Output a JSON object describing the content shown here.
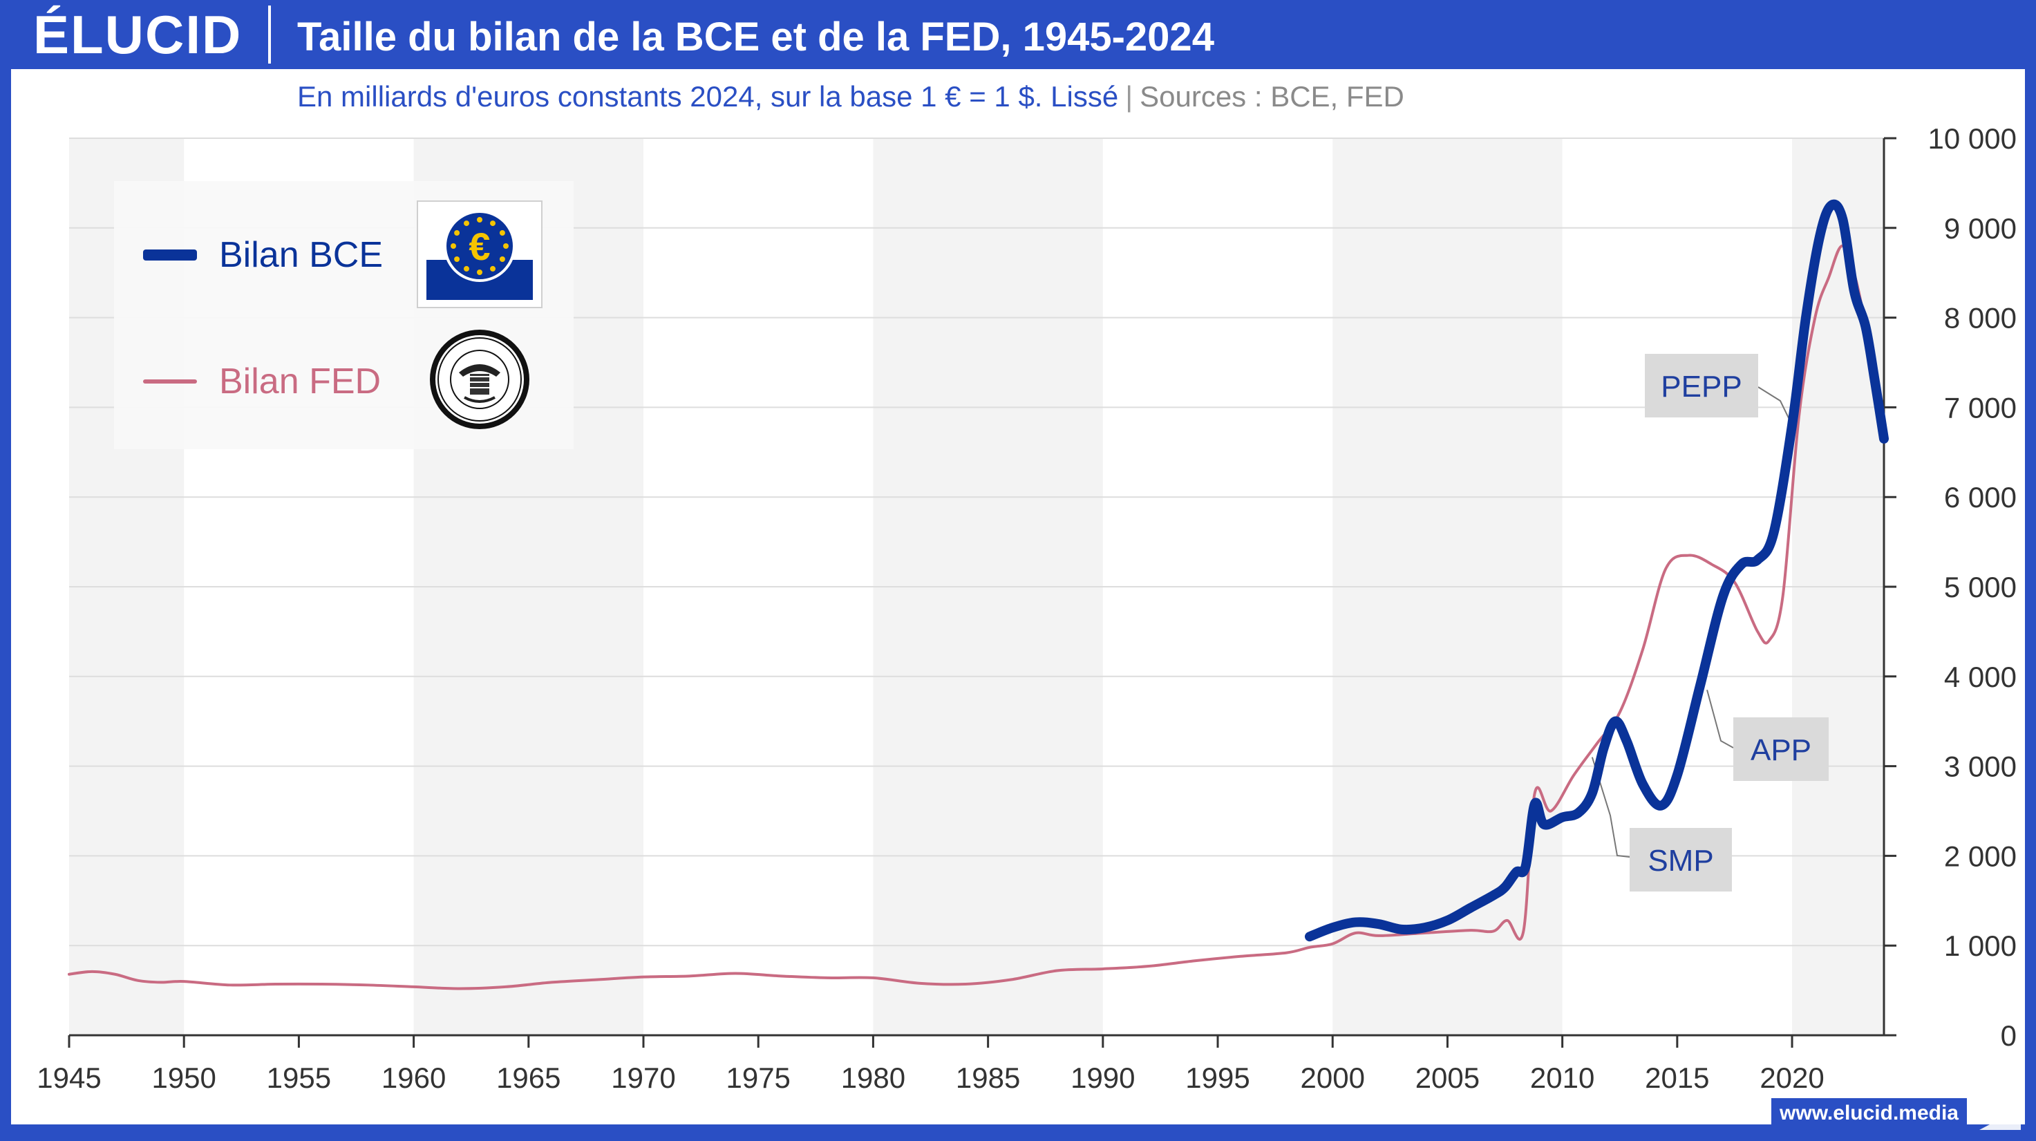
{
  "header": {
    "logo": "ÉLUCID",
    "title": "Taille du bilan de la BCE et de la FED, 1945-2024",
    "subtitle_main": "En milliards d'euros constants 2024, sur la base 1 € = 1 $. Lissé",
    "subtitle_sep": "|",
    "subtitle_sources": "Sources : BCE, FED"
  },
  "footer": {
    "url": "www.elucid.media"
  },
  "legend": {
    "ecb_label": "Bilan BCE",
    "fed_label": "Bilan FED",
    "ecb_icon": "ecb-euro-logo-icon",
    "fed_icon": "federal-reserve-seal-icon"
  },
  "colors": {
    "brand": "#2a4fc4",
    "ecb": "#0a3399",
    "fed": "#c96b82",
    "grid": "#dddddd",
    "band": "#f3f3f3",
    "annotation_bg": "#dadada",
    "annotation_text": "#1f3f9f"
  },
  "chart_data": {
    "type": "line",
    "title": "Taille du bilan de la BCE et de la FED, 1945-2024",
    "xlabel": "",
    "ylabel": "",
    "xlim": [
      1945,
      2024
    ],
    "ylim": [
      0,
      10000
    ],
    "x_ticks": [
      1945,
      1950,
      1955,
      1960,
      1965,
      1970,
      1975,
      1980,
      1985,
      1990,
      1995,
      2000,
      2005,
      2010,
      2015,
      2020
    ],
    "x_tick_labels": [
      "1945",
      "1950",
      "1955",
      "1960",
      "1965",
      "1970",
      "1975",
      "1980",
      "1985",
      "1990",
      "1995",
      "2000",
      "2005",
      "2010",
      "2015",
      "2020"
    ],
    "y_ticks": [
      0,
      1000,
      2000,
      3000,
      4000,
      5000,
      6000,
      7000,
      8000,
      9000,
      10000
    ],
    "y_tick_labels": [
      "0",
      "1 000",
      "2 000",
      "3 000",
      "4 000",
      "5 000",
      "6 000",
      "7 000",
      "8 000",
      "9 000",
      "10 000"
    ],
    "y_axis_side": "right",
    "grid": true,
    "shaded_bands": [
      [
        1945,
        1950
      ],
      [
        1960,
        1970
      ],
      [
        1980,
        1990
      ],
      [
        2000,
        2010
      ],
      [
        2020,
        2024
      ]
    ],
    "legend_position": "top-left",
    "series": [
      {
        "name": "Bilan BCE",
        "color": "#0a3399",
        "x": [
          1999,
          2000,
          2001,
          2002,
          2003,
          2004,
          2005,
          2006,
          2007,
          2007.5,
          2008,
          2008.4,
          2008.8,
          2009.2,
          2010,
          2010.7,
          2011.3,
          2011.8,
          2012.3,
          2012.8,
          2013.5,
          2014.3,
          2015,
          2016,
          2017,
          2017.8,
          2018.5,
          2019.2,
          2020,
          2020.6,
          2021.2,
          2021.7,
          2022.2,
          2022.7,
          2023.2,
          2023.6,
          2024
        ],
        "y": [
          1100,
          1200,
          1260,
          1240,
          1180,
          1200,
          1280,
          1420,
          1560,
          1650,
          1820,
          1880,
          2580,
          2350,
          2430,
          2480,
          2700,
          3200,
          3500,
          3280,
          2800,
          2560,
          2900,
          3900,
          4900,
          5250,
          5300,
          5600,
          6800,
          8000,
          8900,
          9250,
          9100,
          8300,
          7900,
          7300,
          6650
        ]
      },
      {
        "name": "Bilan FED",
        "color": "#c96b82",
        "x": [
          1945,
          1946,
          1947,
          1948,
          1949,
          1950,
          1952,
          1954,
          1956,
          1958,
          1960,
          1962,
          1964,
          1966,
          1968,
          1970,
          1972,
          1974,
          1976,
          1978,
          1980,
          1982,
          1984,
          1986,
          1988,
          1990,
          1992,
          1994,
          1996,
          1998,
          1999,
          2000,
          2001,
          2002,
          2004,
          2006,
          2007,
          2007.6,
          2008.3,
          2008.8,
          2009.5,
          2010.5,
          2011.5,
          2012.5,
          2013.5,
          2014.5,
          2015.5,
          2016.5,
          2017.5,
          2018.5,
          2019,
          2019.6,
          2020.3,
          2021,
          2021.6,
          2022.2,
          2022.8,
          2023.5,
          2024
        ],
        "y": [
          680,
          710,
          680,
          610,
          590,
          600,
          560,
          570,
          570,
          560,
          540,
          520,
          540,
          590,
          620,
          650,
          660,
          690,
          660,
          640,
          640,
          580,
          570,
          620,
          720,
          740,
          770,
          830,
          880,
          920,
          980,
          1020,
          1140,
          1110,
          1140,
          1170,
          1160,
          1280,
          1150,
          2700,
          2500,
          2900,
          3250,
          3600,
          4300,
          5200,
          5350,
          5250,
          5050,
          4500,
          4400,
          4900,
          6900,
          8000,
          8450,
          8800,
          8400,
          7500,
          6750
        ]
      }
    ],
    "annotations": [
      {
        "label": "PEPP",
        "series": "Bilan BCE",
        "x": 2020.1,
        "y": 6750
      },
      {
        "label": "APP",
        "series": "Bilan BCE",
        "x": 2016.3,
        "y": 3850
      },
      {
        "label": "SMP",
        "series": "Bilan BCE",
        "x": 2011.3,
        "y": 3100
      }
    ]
  }
}
